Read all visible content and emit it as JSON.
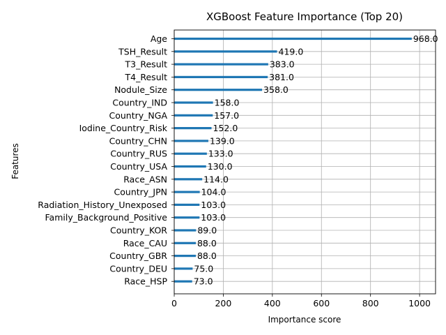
{
  "chart_data": {
    "type": "bar",
    "orientation": "horizontal",
    "title": "XGBoost Feature Importance (Top 20)",
    "xlabel": "Importance score",
    "ylabel": "Features",
    "xlim": [
      0,
      1065
    ],
    "xticks": [
      0,
      200,
      400,
      600,
      800,
      1000
    ],
    "grid": true,
    "colors": {
      "bar": "#1f77b4",
      "grid": "#b0b0b0",
      "axis": "#000000"
    },
    "categories": [
      "Age",
      "TSH_Result",
      "T3_Result",
      "T4_Result",
      "Nodule_Size",
      "Country_IND",
      "Country_NGA",
      "Iodine_Country_Risk",
      "Country_CHN",
      "Country_RUS",
      "Country_USA",
      "Race_ASN",
      "Country_JPN",
      "Radiation_History_Unexposed",
      "Family_Background_Positive",
      "Country_KOR",
      "Race_CAU",
      "Country_GBR",
      "Country_DEU",
      "Race_HSP"
    ],
    "values": [
      968,
      419,
      383,
      381,
      358,
      158,
      157,
      152,
      139,
      133,
      130,
      114,
      104,
      103,
      103,
      89,
      88,
      88,
      75,
      73
    ],
    "value_labels": [
      "968.0",
      "419.0",
      "383.0",
      "381.0",
      "358.0",
      "158.0",
      "157.0",
      "152.0",
      "139.0",
      "133.0",
      "130.0",
      "114.0",
      "104.0",
      "103.0",
      "103.0",
      "89.0",
      "88.0",
      "88.0",
      "75.0",
      "73.0"
    ]
  }
}
